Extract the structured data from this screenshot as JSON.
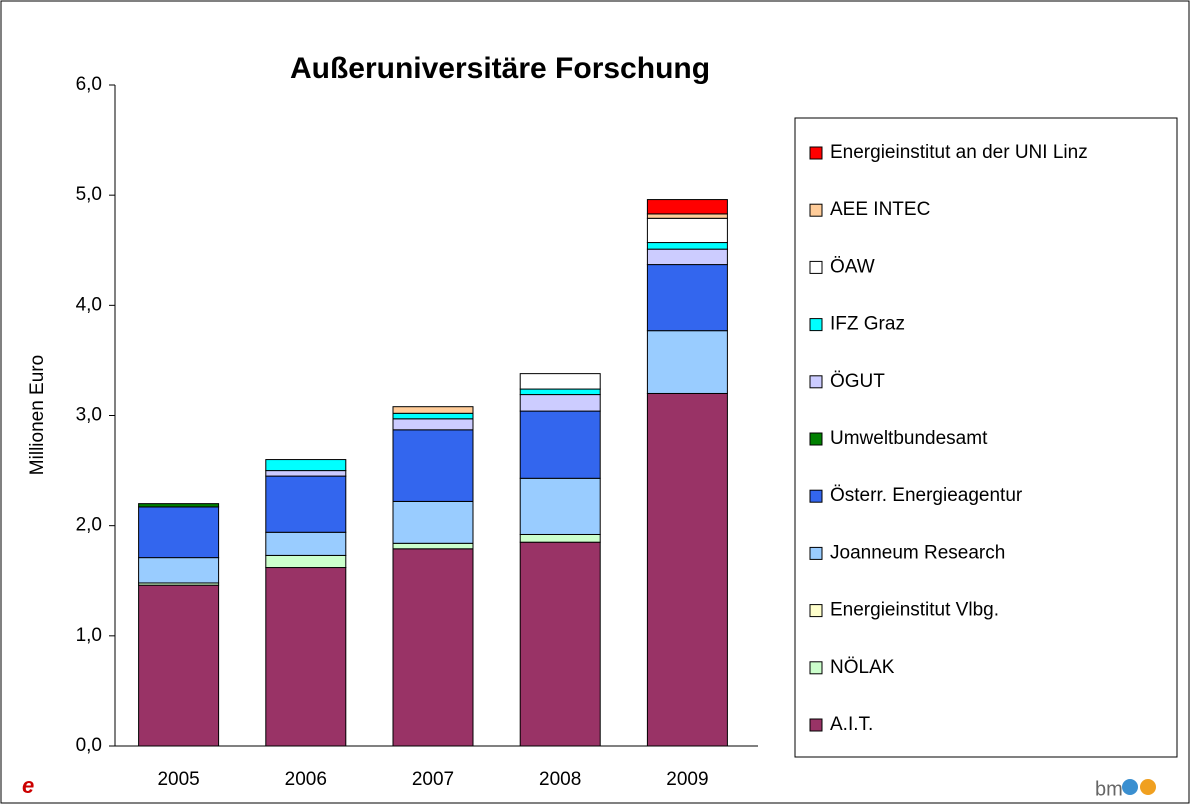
{
  "chart_data": {
    "type": "stacked_bar",
    "title": "Außeruniversitäre Forschung",
    "y_label": "Millionen Euro",
    "categories": [
      "2005",
      "2006",
      "2007",
      "2008",
      "2009"
    ],
    "series": [
      {
        "name": "A.I.T.",
        "color": "#993366",
        "values": [
          1.46,
          1.62,
          1.79,
          1.85,
          3.2
        ]
      },
      {
        "name": "NÖLAK",
        "color": "#ccffcc",
        "values": [
          0.02,
          0.11,
          0.05,
          0.07,
          0
        ]
      },
      {
        "name": "Energieinstitut Vlbg.",
        "color": "#ffffcc",
        "values": [
          0,
          0,
          0,
          0,
          0
        ]
      },
      {
        "name": "Joanneum  Research",
        "color": "#99ccff",
        "values": [
          0.23,
          0.21,
          0.38,
          0.51,
          0.57
        ]
      },
      {
        "name": "Österr. Energieagentur",
        "color": "#3366ee",
        "values": [
          0.46,
          0.51,
          0.65,
          0.61,
          0.6
        ]
      },
      {
        "name": "Umweltbundesamt",
        "color": "#008000",
        "values": [
          0.03,
          0,
          0,
          0,
          0
        ]
      },
      {
        "name": "ÖGUT",
        "color": "#ccccff",
        "values": [
          0,
          0.05,
          0.1,
          0.15,
          0.14
        ]
      },
      {
        "name": "IFZ Graz",
        "color": "#00ffff",
        "values": [
          0,
          0.1,
          0.05,
          0.05,
          0.06
        ]
      },
      {
        "name": "ÖAW",
        "color": "#ffffff",
        "values": [
          0,
          0,
          0,
          0.14,
          0.22
        ]
      },
      {
        "name": "AEE INTEC",
        "color": "#ffcc99",
        "values": [
          0,
          0,
          0.06,
          0,
          0.04
        ]
      },
      {
        "name": "Energieinstitut an der UNI Linz",
        "color": "#ff0000",
        "values": [
          0,
          0,
          0,
          0,
          0.13
        ]
      }
    ],
    "ylim": [
      0,
      6
    ],
    "yticks": [
      {
        "value": 0,
        "label": "0,0"
      },
      {
        "value": 1,
        "label": "1,0"
      },
      {
        "value": 2,
        "label": "2,0"
      },
      {
        "value": 3,
        "label": "3,0"
      },
      {
        "value": 4,
        "label": "4,0"
      },
      {
        "value": 5,
        "label": "5,0"
      },
      {
        "value": 6,
        "label": "6,0"
      }
    ],
    "logo": "bm"
  }
}
